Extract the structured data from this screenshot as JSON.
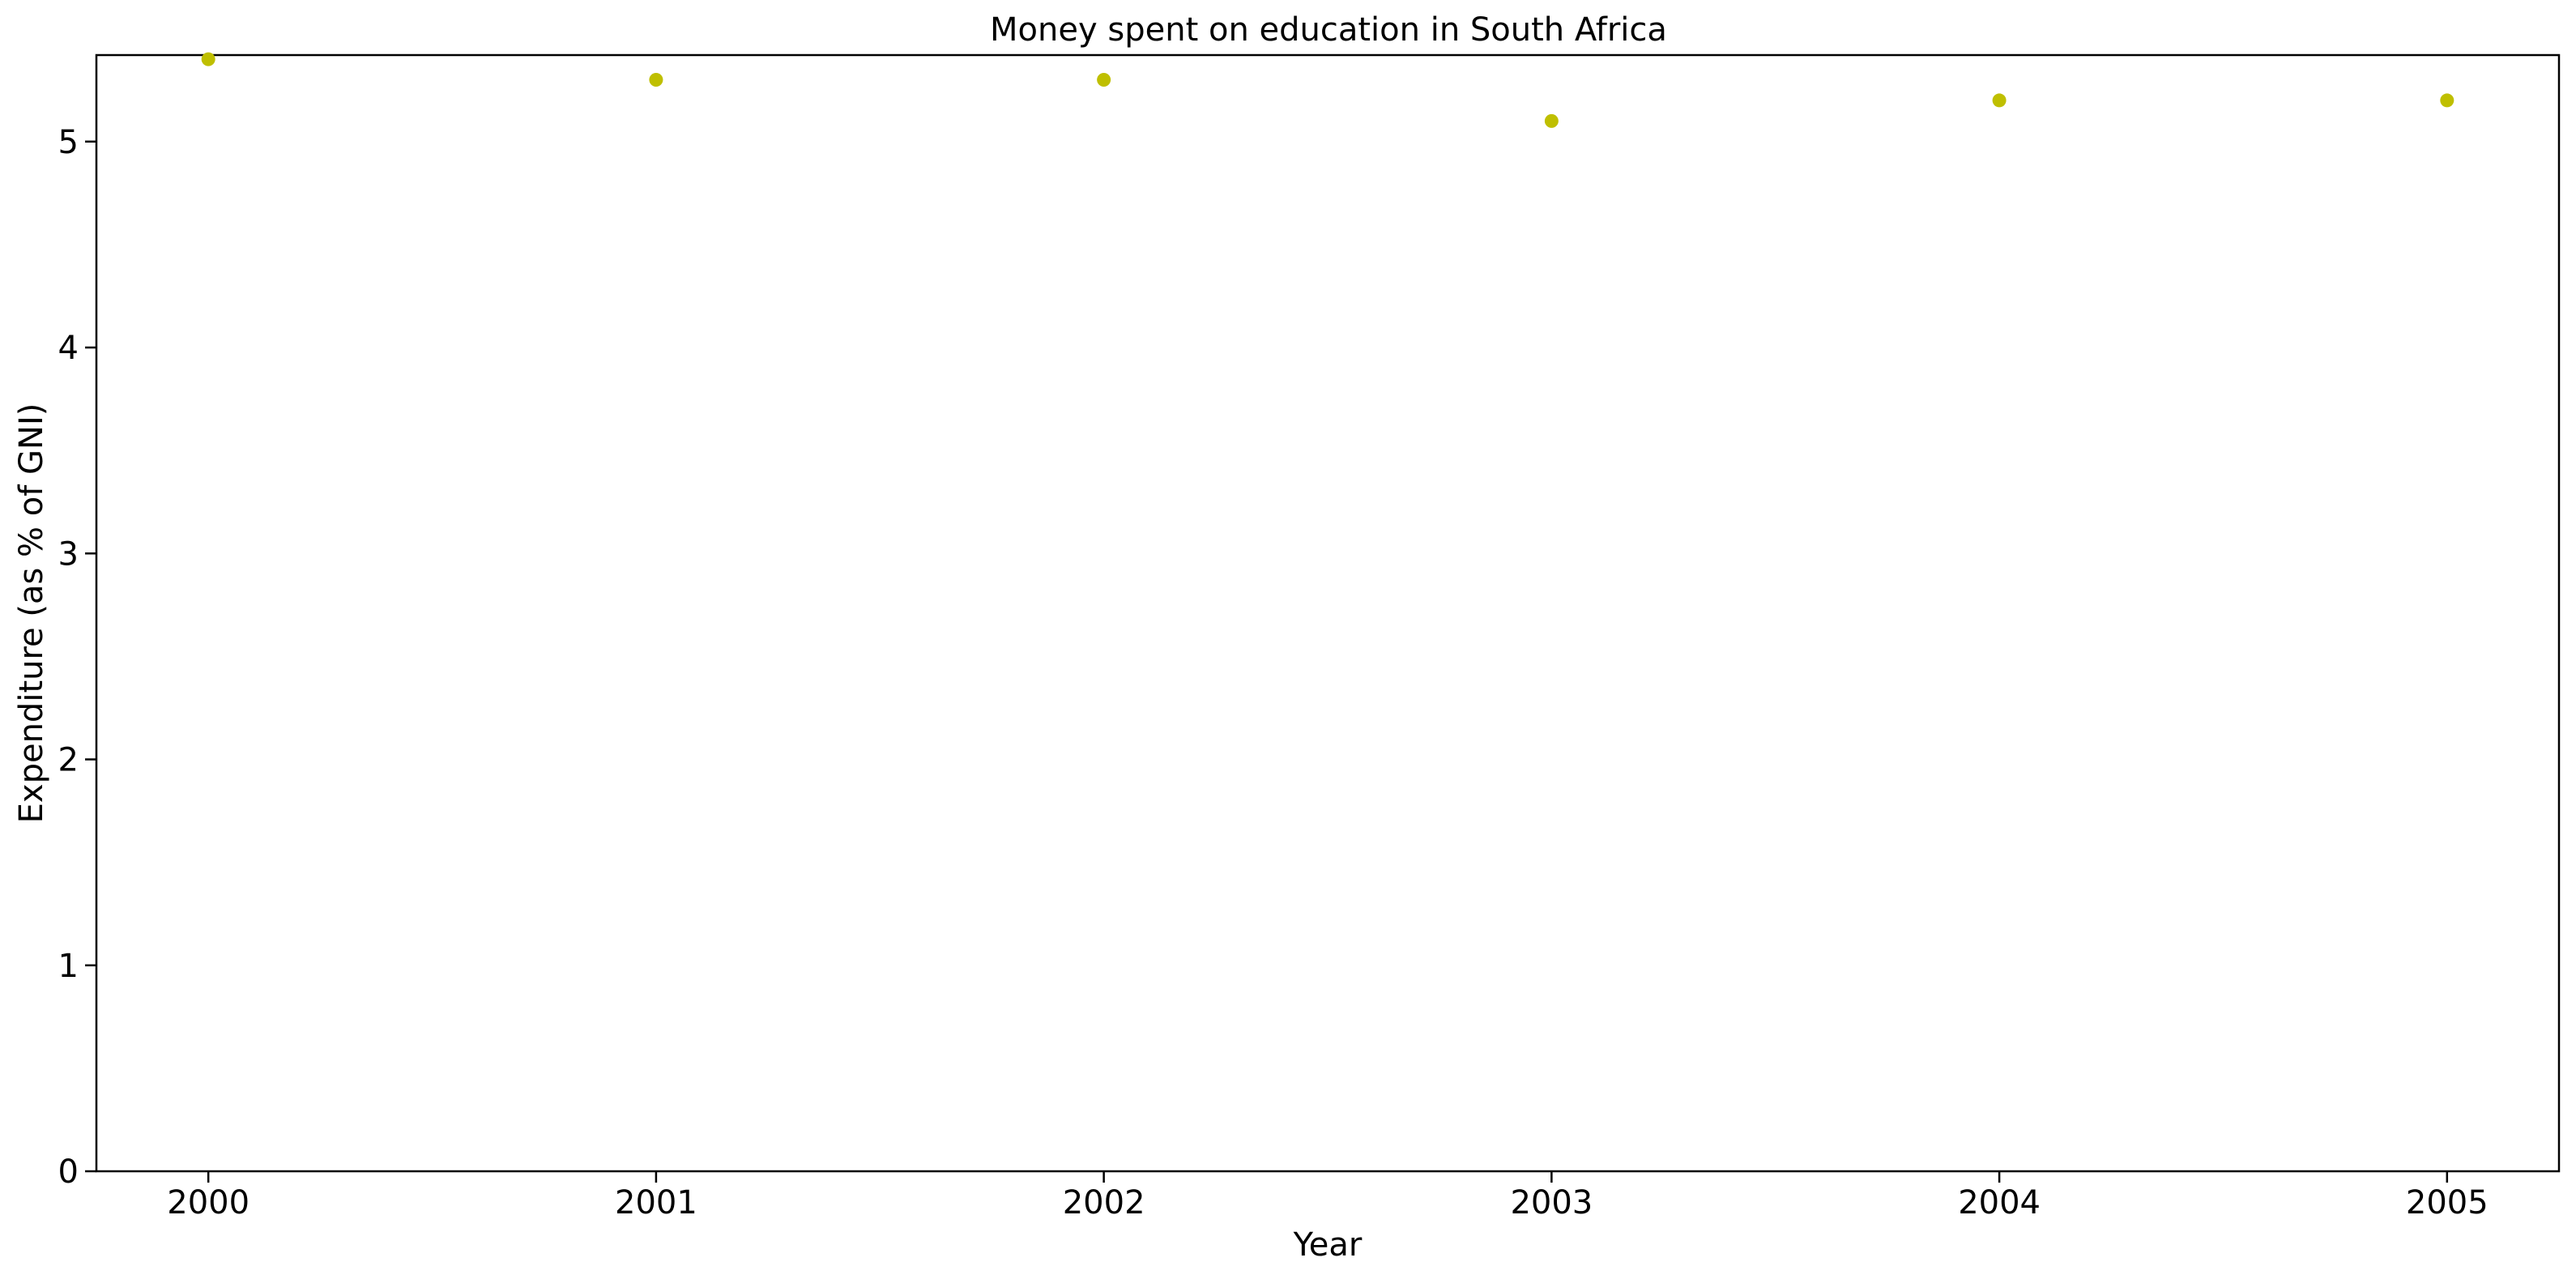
{
  "chart_data": {
    "type": "scatter",
    "title": "Money spent on education in South Africa",
    "xlabel": "Year",
    "ylabel": "Expenditure (as % of GNI)",
    "x": [
      2000,
      2001,
      2002,
      2003,
      2004,
      2005
    ],
    "values": [
      5.4,
      5.3,
      5.3,
      5.1,
      5.2,
      5.2
    ],
    "xlim": [
      1999.75,
      2005.25
    ],
    "ylim": [
      0,
      5.42
    ],
    "xticks": [
      "2000",
      "2001",
      "2002",
      "2003",
      "2004",
      "2005"
    ],
    "yticks": [
      "0",
      "1",
      "2",
      "3",
      "4",
      "5"
    ],
    "grid": false,
    "marker_color": "#bfbf00"
  }
}
